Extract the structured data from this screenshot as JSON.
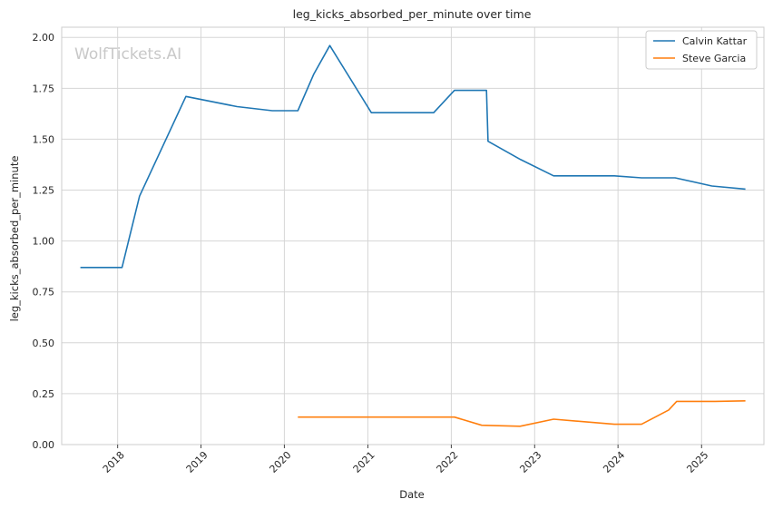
{
  "chart_data": {
    "type": "line",
    "title": "leg_kicks_absorbed_per_minute over time",
    "xlabel": "Date",
    "ylabel": "leg_kicks_absorbed_per_minute",
    "watermark": "WolfTickets.AI",
    "xlim": [
      "2017-05-01",
      "2025-10-01"
    ],
    "ylim": [
      0,
      2.05
    ],
    "x_ticks": [
      "2018",
      "2019",
      "2020",
      "2021",
      "2022",
      "2023",
      "2024",
      "2025"
    ],
    "y_ticks": [
      "0.00",
      "0.25",
      "0.50",
      "0.75",
      "1.00",
      "1.25",
      "1.50",
      "1.75",
      "2.00"
    ],
    "grid": true,
    "legend_position": "top-right",
    "series": [
      {
        "name": "Calvin Kattar",
        "color": "#1f77b4",
        "points": [
          {
            "x": "2017-07-22",
            "y": 0.87
          },
          {
            "x": "2018-01-20",
            "y": 0.87
          },
          {
            "x": "2018-04-07",
            "y": 1.22
          },
          {
            "x": "2018-10-27",
            "y": 1.71
          },
          {
            "x": "2019-06-08",
            "y": 1.66
          },
          {
            "x": "2019-11-09",
            "y": 1.64
          },
          {
            "x": "2020-02-29",
            "y": 1.64
          },
          {
            "x": "2020-05-09",
            "y": 1.82
          },
          {
            "x": "2020-07-18",
            "y": 1.96
          },
          {
            "x": "2021-01-16",
            "y": 1.63
          },
          {
            "x": "2021-10-16",
            "y": 1.63
          },
          {
            "x": "2022-01-15",
            "y": 1.74
          },
          {
            "x": "2022-06-04",
            "y": 1.74
          },
          {
            "x": "2022-06-11",
            "y": 1.49
          },
          {
            "x": "2022-11-01",
            "y": 1.4
          },
          {
            "x": "2023-03-25",
            "y": 1.32
          },
          {
            "x": "2023-12-16",
            "y": 1.32
          },
          {
            "x": "2024-04-13",
            "y": 1.31
          },
          {
            "x": "2024-09-07",
            "y": 1.31
          },
          {
            "x": "2025-02-15",
            "y": 1.27
          },
          {
            "x": "2025-07-12",
            "y": 1.255
          }
        ]
      },
      {
        "name": "Steve Garcia",
        "color": "#ff7f0e",
        "points": [
          {
            "x": "2020-02-29",
            "y": 0.135
          },
          {
            "x": "2022-01-15",
            "y": 0.135
          },
          {
            "x": "2022-05-14",
            "y": 0.095
          },
          {
            "x": "2022-10-29",
            "y": 0.09
          },
          {
            "x": "2023-03-25",
            "y": 0.125
          },
          {
            "x": "2023-12-16",
            "y": 0.1
          },
          {
            "x": "2024-04-13",
            "y": 0.1
          },
          {
            "x": "2024-08-10",
            "y": 0.17
          },
          {
            "x": "2024-09-14",
            "y": 0.212
          },
          {
            "x": "2025-03-01",
            "y": 0.212
          },
          {
            "x": "2025-07-12",
            "y": 0.215
          }
        ]
      }
    ]
  }
}
